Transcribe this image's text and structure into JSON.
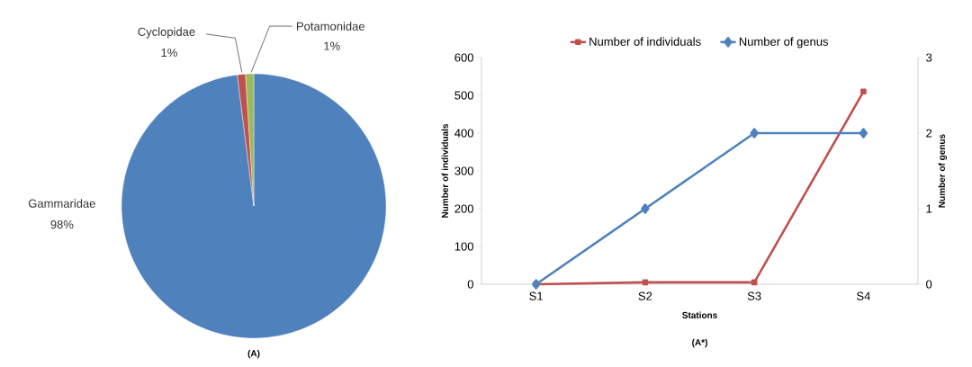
{
  "chart_data": [
    {
      "type": "pie",
      "categories": [
        "Gammaridae",
        "Cyclopidae",
        "Potamonidae"
      ],
      "values": [
        98,
        1,
        1
      ],
      "colors": [
        "#4f81bd",
        "#c0504d",
        "#9bbb59"
      ],
      "value_labels": [
        "98%",
        "1%",
        "1%"
      ],
      "annotations": [
        "(A)"
      ]
    },
    {
      "type": "line",
      "categories": [
        "S1",
        "S2",
        "S3",
        "S4"
      ],
      "xlabel": "Stations",
      "ylabel": "Number of individuals",
      "y2label": "Number of genus",
      "ylim": [
        0,
        600
      ],
      "yticks": [
        0,
        100,
        200,
        300,
        400,
        500,
        600
      ],
      "y2lim": [
        0,
        3
      ],
      "y2ticks": [
        0,
        1,
        2,
        3
      ],
      "legend": "top",
      "annotations": [
        "(A*)"
      ],
      "series": [
        {
          "name": "Number of individuals",
          "color": "#c0504d",
          "marker": "square",
          "values": [
            0,
            5,
            5,
            510
          ]
        },
        {
          "name": "Number of genus",
          "color": "#4f81bd",
          "marker": "diamond",
          "axis": "y2",
          "values": [
            0,
            1,
            2,
            2
          ]
        }
      ]
    }
  ]
}
